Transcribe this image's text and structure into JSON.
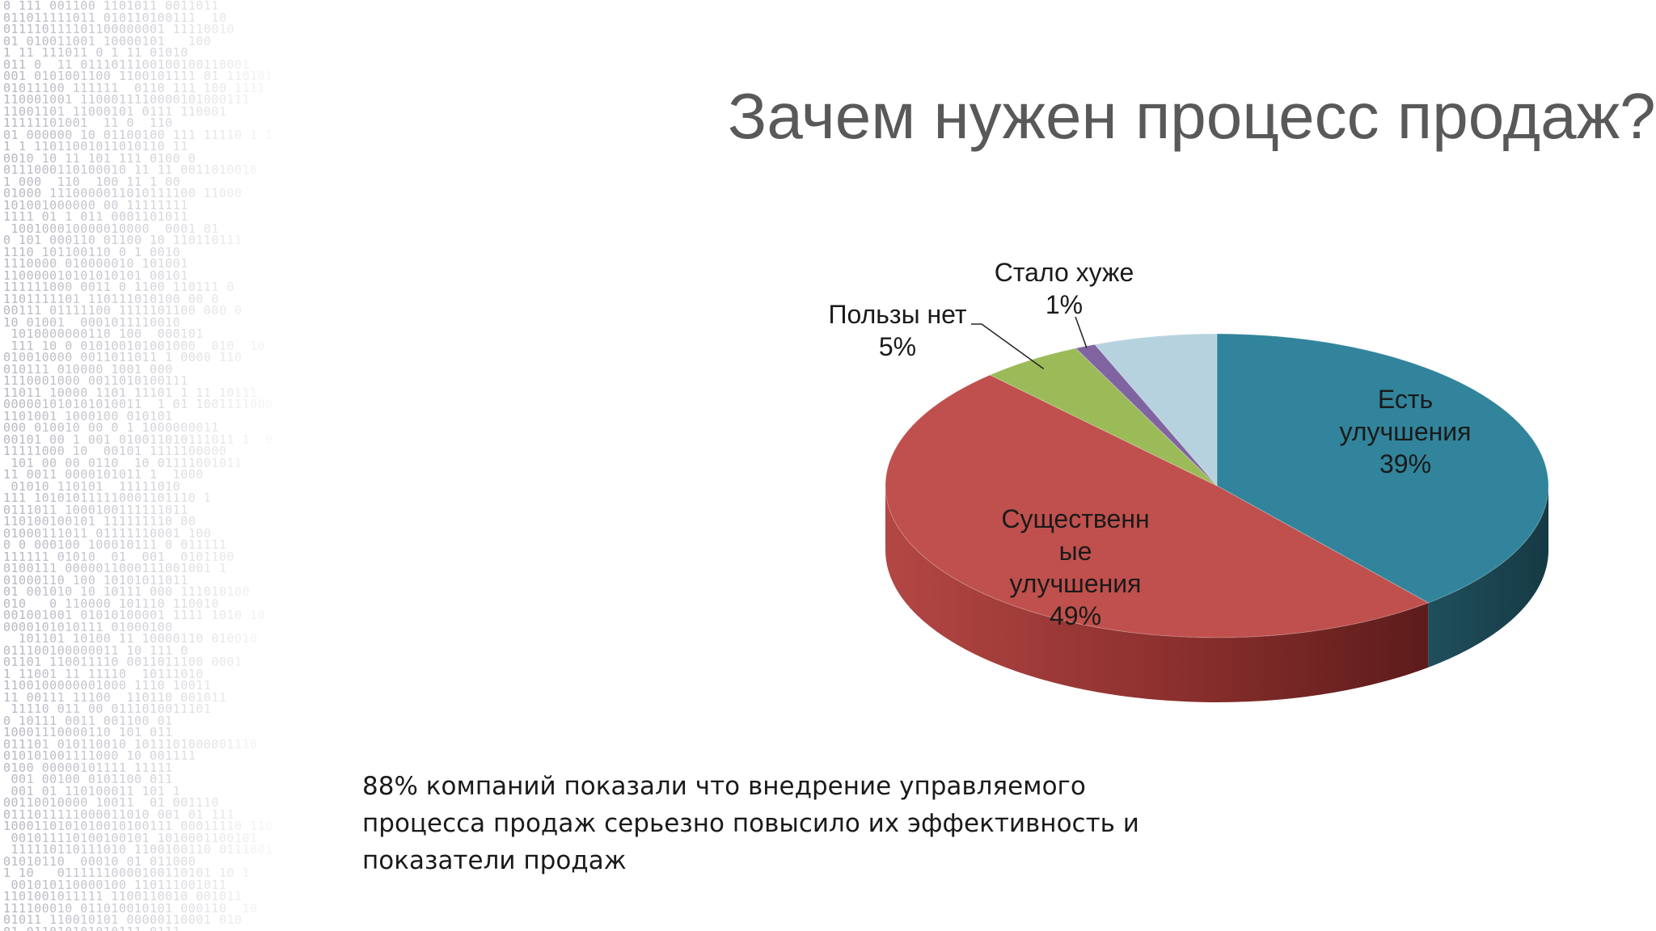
{
  "slide": {
    "title": "Зачем нужен процесс продаж?",
    "caption": "88% компаний показали что внедрение управляемого процесса продаж серьезно повысило их эффективность и показатели продаж"
  },
  "chart_data": {
    "type": "pie",
    "style": "3d",
    "title": "",
    "slices": [
      {
        "label_lines": [
          "Есть",
          "улучшения",
          "39%"
        ],
        "value": 39,
        "color": "#31849b"
      },
      {
        "label_lines": [
          "Существенн",
          "ые",
          "улучшения",
          "49%"
        ],
        "value": 49,
        "color": "#c0504d"
      },
      {
        "label_lines": [
          "Пользы нет",
          "5%"
        ],
        "value": 5,
        "color": "#9bbb59"
      },
      {
        "label_lines": [
          "Стало хуже",
          "1%"
        ],
        "value": 1,
        "color": "#8064a2"
      },
      {
        "label_lines": [],
        "value": 6,
        "color": "#b7d2df"
      }
    ]
  }
}
